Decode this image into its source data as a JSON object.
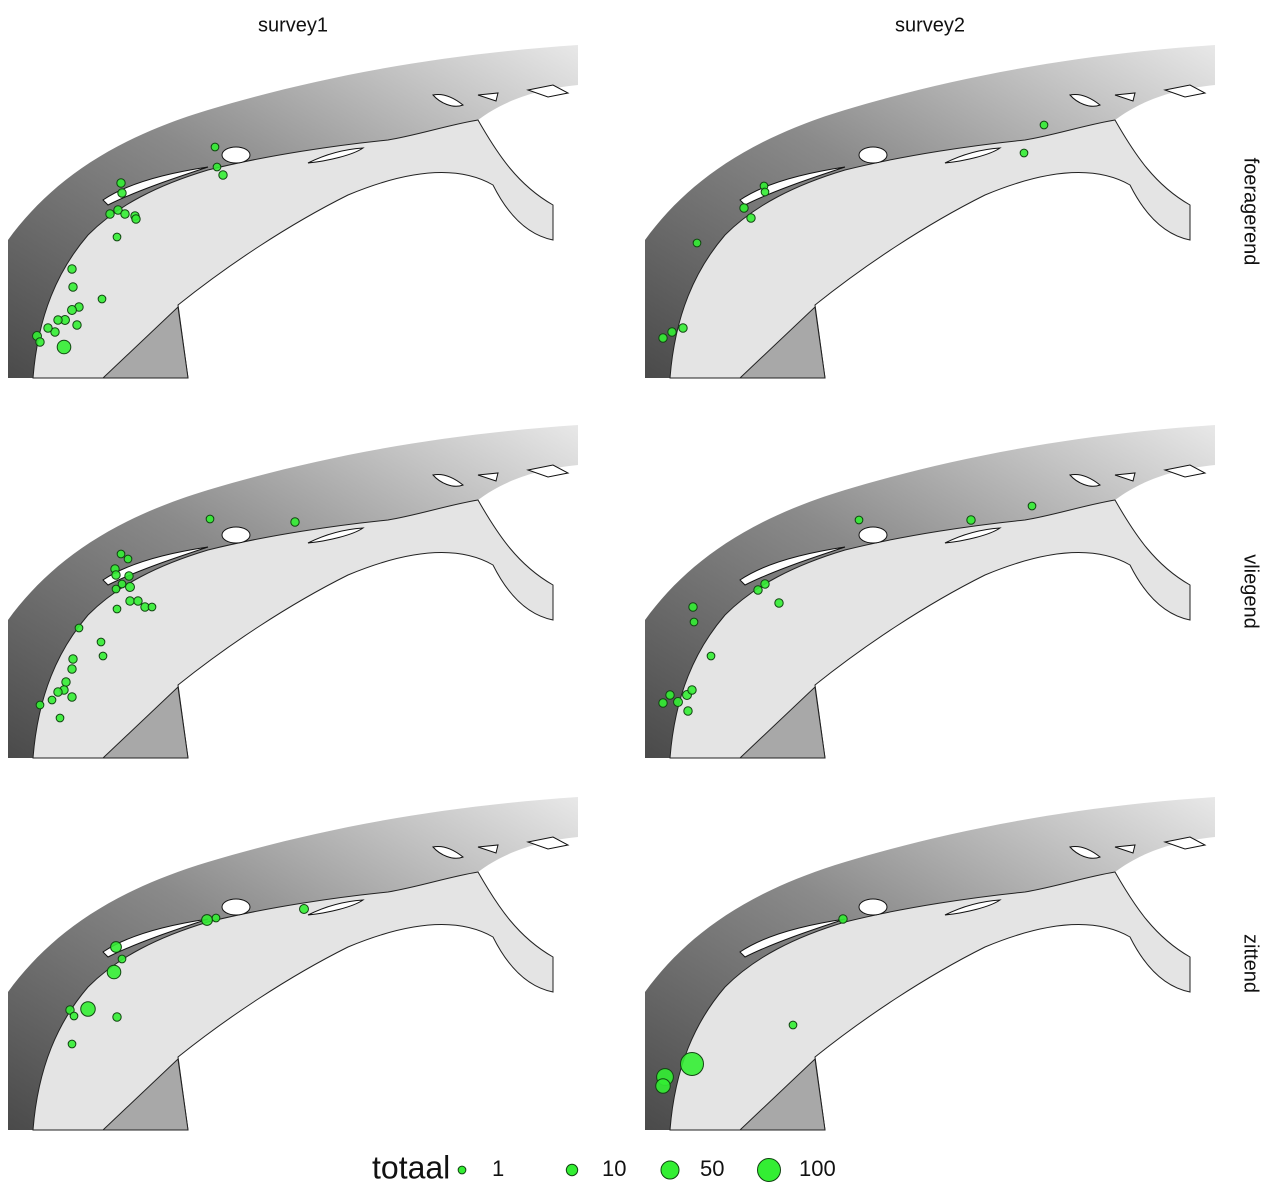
{
  "chart_data": {
    "type": "scatter",
    "columns": [
      "survey1",
      "survey2"
    ],
    "rows": [
      "foeragerend",
      "vliegend",
      "zittend"
    ],
    "xlim": [
      0,
      570
    ],
    "ylim": [
      333,
      0
    ],
    "color": "#33ee33",
    "panels": [
      {
        "x": [
          207,
          209,
          215,
          113,
          114,
          102,
          110,
          117,
          127,
          128,
          109,
          94,
          64,
          65,
          71,
          64,
          57,
          50,
          47,
          40,
          29,
          32,
          56,
          69
        ],
        "y": [
          102,
          122,
          130,
          138,
          148,
          169,
          165,
          169,
          171,
          174,
          192,
          254,
          224,
          242,
          262,
          265,
          275,
          275,
          287,
          283,
          291,
          297,
          302,
          280
        ],
        "size": [
          1,
          1,
          2,
          2,
          2,
          2,
          2,
          2,
          2,
          2,
          1,
          1,
          2,
          2,
          2,
          3,
          3,
          2,
          2,
          2,
          3,
          2,
          20,
          2
        ]
      },
      {
        "x": [
          399,
          379,
          119,
          120,
          99,
          106,
          52,
          38,
          27,
          18
        ],
        "y": [
          80,
          108,
          141,
          147,
          163,
          173,
          198,
          283,
          287,
          293
        ],
        "size": [
          1,
          1,
          1,
          1,
          2,
          2,
          1,
          2,
          2,
          2
        ]
      },
      {
        "x": [
          202,
          287,
          113,
          120,
          107,
          108,
          121,
          114,
          122,
          108,
          122,
          130,
          137,
          144,
          109,
          71,
          93,
          95,
          65,
          64,
          58,
          56,
          50,
          64,
          44,
          32,
          52
        ],
        "y": [
          94,
          97,
          129,
          134,
          144,
          150,
          151,
          159,
          162,
          164,
          176,
          176,
          182,
          182,
          184,
          203,
          217,
          231,
          234,
          244,
          257,
          265,
          267,
          272,
          275,
          280,
          293
        ],
        "size": [
          1,
          2,
          1,
          1,
          2,
          2,
          2,
          1,
          3,
          1,
          2,
          2,
          2,
          1,
          1,
          1,
          1,
          1,
          2,
          2,
          2,
          2,
          2,
          2,
          1,
          1,
          1
        ]
      },
      {
        "x": [
          214,
          326,
          387,
          120,
          113,
          134,
          48,
          49,
          66,
          25,
          33,
          42,
          47,
          43,
          18
        ],
        "y": [
          95,
          95,
          81,
          159,
          165,
          178,
          182,
          197,
          231,
          270,
          277,
          270,
          265,
          286,
          278
        ],
        "size": [
          1,
          2,
          1,
          2,
          2,
          2,
          2,
          1,
          1,
          2,
          3,
          3,
          2,
          2,
          2
        ]
      },
      {
        "x": [
          199,
          208,
          296,
          108,
          106,
          114,
          80,
          62,
          66,
          109,
          64
        ],
        "y": [
          123,
          121,
          112,
          150,
          175,
          162,
          212,
          213,
          219,
          220,
          247
        ],
        "size": [
          8,
          1,
          3,
          8,
          20,
          1,
          25,
          2,
          1,
          2,
          1
        ]
      },
      {
        "x": [
          198,
          148,
          47,
          20,
          18
        ],
        "y": [
          122,
          228,
          267,
          280,
          289
        ],
        "size": [
          2,
          1,
          100,
          40,
          25
        ]
      }
    ],
    "size_legend": {
      "title": "totaal",
      "values": [
        1,
        10,
        50,
        100
      ]
    }
  }
}
